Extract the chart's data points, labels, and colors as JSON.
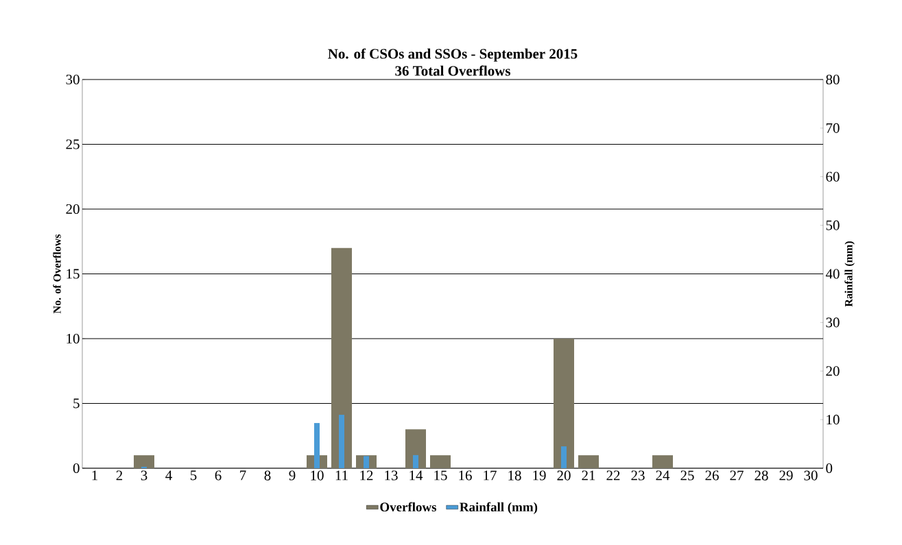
{
  "chart_data": {
    "type": "bar",
    "title": "No. of CSOs and SSOs - September 2015",
    "subtitle": "36 Total Overflows",
    "ylabel": "No. of Overflows",
    "y2label": "Rainfall (mm)",
    "categories": [
      "1",
      "2",
      "3",
      "4",
      "5",
      "6",
      "7",
      "8",
      "9",
      "10",
      "11",
      "12",
      "13",
      "14",
      "15",
      "16",
      "17",
      "18",
      "19",
      "20",
      "21",
      "22",
      "23",
      "24",
      "25",
      "26",
      "27",
      "28",
      "29",
      "30"
    ],
    "series": [
      {
        "name": "Overflows",
        "color": "#7d7863",
        "values": [
          0,
          0,
          1,
          0,
          0,
          0,
          0,
          0,
          0,
          1,
          17,
          1,
          0,
          3,
          1,
          0,
          0,
          0,
          0,
          10,
          1,
          0,
          0,
          1,
          0,
          0,
          0,
          0,
          0,
          0
        ]
      },
      {
        "name": "Rainfall (mm)",
        "color": "#4a9bd6",
        "axis": "y2",
        "values": [
          0,
          0,
          0.3,
          0,
          0,
          0,
          0,
          0,
          0,
          9.3,
          11,
          2.5,
          0,
          2.7,
          0,
          0,
          0,
          0,
          0,
          4.5,
          0,
          0,
          0,
          0,
          0,
          0,
          0,
          0,
          0,
          0
        ]
      }
    ],
    "ylim": [
      0,
      30
    ],
    "yticks": [
      0,
      5,
      10,
      15,
      20,
      25,
      30
    ],
    "y2lim": [
      0,
      80
    ],
    "y2ticks": [
      0,
      10,
      20,
      30,
      40,
      50,
      60,
      70,
      80
    ],
    "grid": "y",
    "legend": "bottom"
  }
}
